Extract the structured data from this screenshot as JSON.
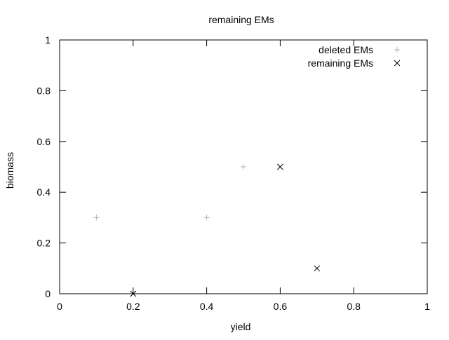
{
  "chart_data": {
    "type": "scatter",
    "title": "remaining EMs",
    "xlabel": "yield",
    "ylabel": "biomass",
    "xlim": [
      0,
      1
    ],
    "ylim": [
      0,
      1
    ],
    "x_ticks": [
      "0",
      "0.2",
      "0.4",
      "0.6",
      "0.8",
      "1"
    ],
    "y_ticks": [
      "0",
      "0.2",
      "0.4",
      "0.6",
      "0.8",
      "1"
    ],
    "grid": false,
    "legend_position": "top-right",
    "series": [
      {
        "name": "deleted EMs",
        "marker": "plus",
        "color": "#b3b3b3",
        "points": [
          {
            "x": 0.1,
            "y": 0.3
          },
          {
            "x": 0.4,
            "y": 0.3
          },
          {
            "x": 0.5,
            "y": 0.5
          }
        ]
      },
      {
        "name": "remaining EMs",
        "marker": "cross",
        "color": "#000000",
        "points": [
          {
            "x": 0.2,
            "y": 0.0
          },
          {
            "x": 0.6,
            "y": 0.5
          },
          {
            "x": 0.7,
            "y": 0.1
          }
        ]
      }
    ]
  }
}
